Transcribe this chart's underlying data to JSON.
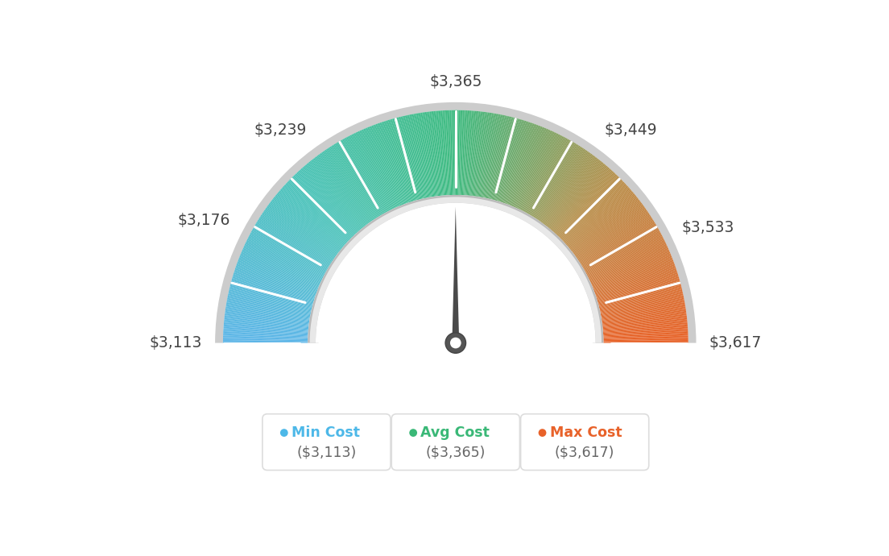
{
  "min_val": 3113,
  "max_val": 3617,
  "avg_val": 3365,
  "tick_labels": [
    "$3,113",
    "$3,176",
    "$3,239",
    "$3,365",
    "$3,449",
    "$3,533",
    "$3,617"
  ],
  "tick_values": [
    3113,
    3176,
    3239,
    3365,
    3449,
    3533,
    3617
  ],
  "legend": [
    {
      "label": "Min Cost",
      "value": "($3,113)",
      "color": "#4db8e8"
    },
    {
      "label": "Avg Cost",
      "value": "($3,365)",
      "color": "#3ab877"
    },
    {
      "label": "Max Cost",
      "value": "($3,617)",
      "color": "#e8622a"
    }
  ],
  "background_color": "#ffffff",
  "needle_value": 3365,
  "color_stops": [
    [
      0.0,
      [
        0.36,
        0.71,
        0.91
      ]
    ],
    [
      0.25,
      [
        0.28,
        0.76,
        0.72
      ]
    ],
    [
      0.5,
      [
        0.24,
        0.73,
        0.5
      ]
    ],
    [
      0.75,
      [
        0.72,
        0.55,
        0.28
      ]
    ],
    [
      1.0,
      [
        0.91,
        0.38,
        0.15
      ]
    ]
  ]
}
